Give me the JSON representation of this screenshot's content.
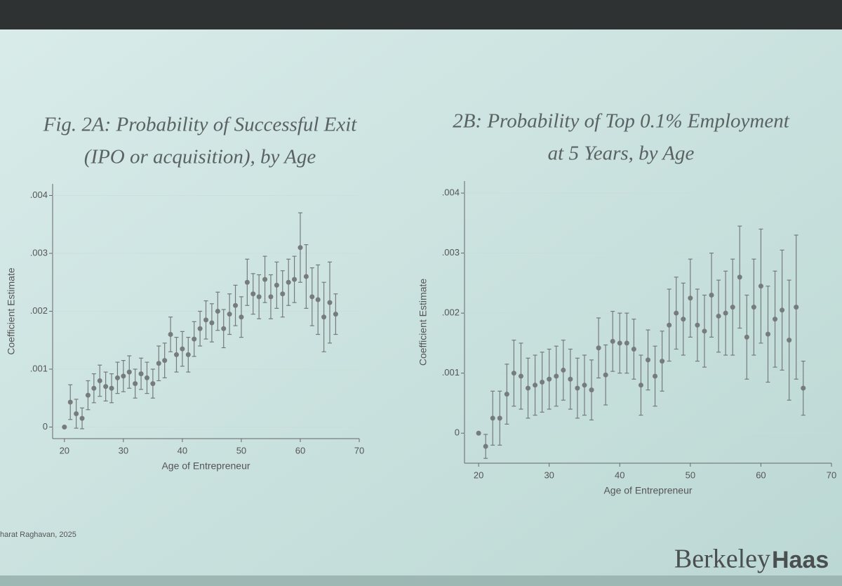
{
  "chart_data": [
    {
      "type": "scatter",
      "title": [
        "Fig. 2A: Probability of Successful Exit",
        "(IPO or acquisition), by Age"
      ],
      "x_label": "Age of Entrepreneur",
      "y_label": "Coefficient Estimate",
      "color": "#767b7b",
      "x": [
        20,
        21,
        22,
        23,
        24,
        25,
        26,
        27,
        28,
        29,
        30,
        31,
        32,
        33,
        34,
        35,
        36,
        37,
        38,
        39,
        40,
        41,
        42,
        43,
        44,
        45,
        46,
        47,
        48,
        49,
        50,
        51,
        52,
        53,
        54,
        55,
        56,
        57,
        58,
        59,
        60,
        61,
        62,
        63,
        64,
        65,
        66
      ],
      "values": [
        0,
        0.00043,
        0.00023,
        0.00015,
        0.00055,
        0.00067,
        0.0008,
        0.0007,
        0.00067,
        0.00085,
        0.00088,
        0.00095,
        0.00075,
        0.00092,
        0.00085,
        0.00075,
        0.0011,
        0.00115,
        0.0016,
        0.00125,
        0.00135,
        0.00125,
        0.00152,
        0.0017,
        0.00185,
        0.0018,
        0.002,
        0.0017,
        0.00195,
        0.0021,
        0.0019,
        0.0025,
        0.0023,
        0.00225,
        0.00255,
        0.00225,
        0.00245,
        0.0023,
        0.0025,
        0.00255,
        0.0031,
        0.0026,
        0.00225,
        0.0022,
        0.0019,
        0.00215,
        0.00195
      ],
      "errors": [
        0,
        0.0003,
        0.00025,
        0.00018,
        0.00025,
        0.00025,
        0.00027,
        0.00025,
        0.00025,
        0.00027,
        0.00027,
        0.00028,
        0.00025,
        0.00027,
        0.00027,
        0.00025,
        0.0003,
        0.0003,
        0.0003,
        0.0003,
        0.0003,
        0.0003,
        0.0003,
        0.0003,
        0.00033,
        0.00033,
        0.00033,
        0.00033,
        0.00035,
        0.00035,
        0.00035,
        0.0004,
        0.00035,
        0.00038,
        0.0004,
        0.00038,
        0.0004,
        0.0004,
        0.0004,
        0.0004,
        0.0006,
        0.00055,
        0.0005,
        0.0006,
        0.0006,
        0.0007,
        0.00035
      ],
      "xlim": [
        18,
        70
      ],
      "xticks": [
        20,
        30,
        40,
        50,
        60,
        70
      ],
      "ylim": [
        -0.0002,
        0.0042
      ],
      "yticks": [
        {
          "value": 0,
          "label": "0"
        },
        {
          "value": 0.001,
          "label": ".001"
        },
        {
          "value": 0.002,
          "label": ".002"
        },
        {
          "value": 0.003,
          "label": ".003"
        },
        {
          "value": 0.004,
          "label": ".004"
        }
      ]
    },
    {
      "type": "scatter",
      "title": [
        "2B: Probability of Top 0.1% Employment",
        "at 5 Years, by Age"
      ],
      "x_label": "Age of Entrepreneur",
      "y_label": "Coefficient Estimate",
      "color": "#767b7b",
      "x": [
        20,
        21,
        22,
        23,
        24,
        25,
        26,
        27,
        28,
        29,
        30,
        31,
        32,
        33,
        34,
        35,
        36,
        37,
        38,
        39,
        40,
        41,
        42,
        43,
        44,
        45,
        46,
        47,
        48,
        49,
        50,
        51,
        52,
        53,
        54,
        55,
        56,
        57,
        58,
        59,
        60,
        61,
        62,
        63,
        64,
        65,
        66
      ],
      "values": [
        0,
        -0.00022,
        0.00025,
        0.00025,
        0.00065,
        0.001,
        0.00095,
        0.00075,
        0.0008,
        0.00085,
        0.0009,
        0.00095,
        0.00105,
        0.0009,
        0.00075,
        0.0008,
        0.00072,
        0.00142,
        0.00097,
        0.00153,
        0.0015,
        0.0015,
        0.0014,
        0.0008,
        0.00122,
        0.00095,
        0.0012,
        0.0018,
        0.002,
        0.0019,
        0.00225,
        0.0018,
        0.0017,
        0.0023,
        0.00195,
        0.002,
        0.0021,
        0.0026,
        0.0016,
        0.0021,
        0.00245,
        0.00165,
        0.0019,
        0.00205,
        0.00155,
        0.0021,
        0.00075
      ],
      "errors": [
        0,
        0.0002,
        0.00045,
        0.00045,
        0.0005,
        0.00055,
        0.00055,
        0.0005,
        0.0005,
        0.0005,
        0.0005,
        0.0005,
        0.0005,
        0.0005,
        0.0005,
        0.0005,
        0.0005,
        0.0005,
        0.0005,
        0.0005,
        0.0005,
        0.0005,
        0.0005,
        0.0005,
        0.0005,
        0.0005,
        0.0005,
        0.0006,
        0.0006,
        0.0006,
        0.00065,
        0.0006,
        0.0006,
        0.0007,
        0.0006,
        0.0007,
        0.0008,
        0.00085,
        0.0007,
        0.0008,
        0.00095,
        0.0008,
        0.0008,
        0.001,
        0.001,
        0.0012,
        0.00045
      ],
      "xlim": [
        18,
        70
      ],
      "xticks": [
        20,
        30,
        40,
        50,
        60,
        70
      ],
      "ylim": [
        -0.0005,
        0.0042
      ],
      "yticks": [
        {
          "value": 0,
          "label": "0"
        },
        {
          "value": 0.001,
          "label": ".001"
        },
        {
          "value": 0.002,
          "label": ".002"
        },
        {
          "value": 0.003,
          "label": ".003"
        },
        {
          "value": 0.004,
          "label": ".004"
        }
      ]
    }
  ],
  "slide": {
    "credit": "harat Raghavan, 2025",
    "logo_part1": "Berkeley",
    "logo_part2": "Haas"
  }
}
